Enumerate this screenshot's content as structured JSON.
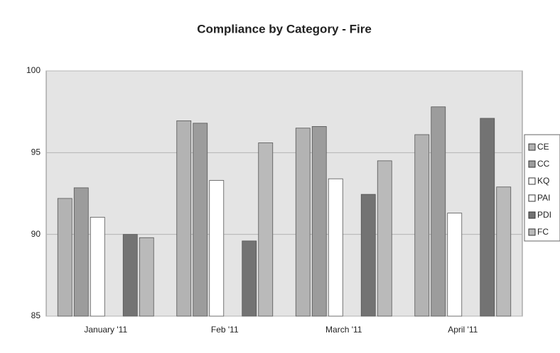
{
  "chart_data": {
    "type": "bar",
    "title": "Compliance by Category - Fire",
    "categories": [
      "January '11",
      "Feb '11",
      "March '11",
      "April '11"
    ],
    "series": [
      {
        "name": "CE",
        "color": "#b3b3b3",
        "values": [
          92.2,
          96.95,
          96.5,
          96.1
        ]
      },
      {
        "name": "CC",
        "color": "#9c9c9c",
        "values": [
          92.85,
          96.8,
          96.6,
          97.8
        ]
      },
      {
        "name": "KQ",
        "color": "#ffffff",
        "values": [
          91.05,
          93.3,
          93.4,
          91.3
        ]
      },
      {
        "name": "PAI",
        "color": "#ffffff",
        "values": [
          null,
          null,
          null,
          null
        ]
      },
      {
        "name": "PDI",
        "color": "#737373",
        "values": [
          90.0,
          89.6,
          92.45,
          97.1
        ]
      },
      {
        "name": "FC",
        "color": "#bababa",
        "values": [
          89.8,
          95.6,
          94.5,
          92.9
        ]
      }
    ],
    "ylim": [
      85,
      100
    ],
    "yticks": [
      85,
      90,
      95,
      100
    ],
    "grid": true,
    "legend": "right"
  }
}
